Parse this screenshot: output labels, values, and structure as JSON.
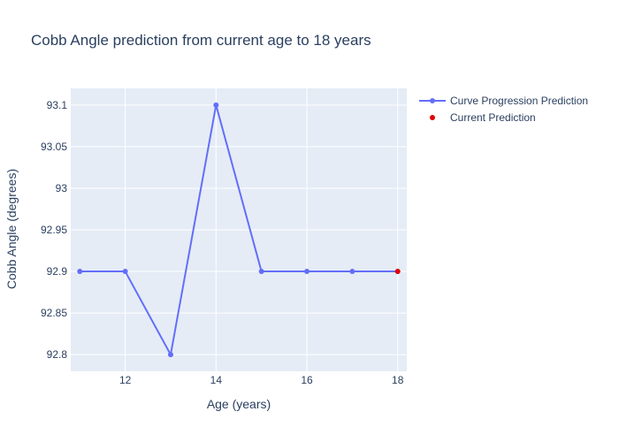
{
  "chart_data": {
    "type": "line",
    "title": "Cobb Angle prediction from current age to 18 years",
    "xlabel": "Age (years)",
    "ylabel": "Cobb Angle (degrees)",
    "xlim": [
      10.8,
      18.2
    ],
    "ylim": [
      92.78,
      93.12
    ],
    "xticks": [
      12,
      14,
      16,
      18
    ],
    "xtick_labels": [
      "12",
      "14",
      "16",
      "18"
    ],
    "yticks": [
      92.8,
      92.85,
      92.9,
      92.95,
      93,
      93.05,
      93.1
    ],
    "ytick_labels": [
      "92.8",
      "92.85",
      "92.9",
      "92.95",
      "93",
      "93.05",
      "93.1"
    ],
    "grid": true,
    "legend_position": "top-right, outside plot",
    "series": [
      {
        "name": "Curve Progression Prediction",
        "mode": "lines+markers",
        "color": "#636efa",
        "x": [
          11,
          12,
          13,
          14,
          15,
          16,
          17,
          18
        ],
        "y": [
          92.9,
          92.9,
          92.8,
          93.1,
          92.9,
          92.9,
          92.9,
          92.9
        ]
      },
      {
        "name": "Current Prediction",
        "mode": "markers",
        "color": "#e00000",
        "x": [
          18
        ],
        "y": [
          92.9
        ]
      }
    ]
  },
  "colors": {
    "plot_background": "#e5ecf6",
    "grid": "#ffffff",
    "text": "#2a3f5f"
  }
}
